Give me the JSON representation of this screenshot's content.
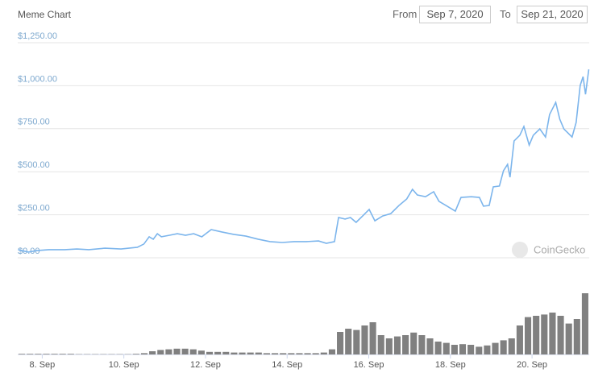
{
  "header": {
    "from_label": "From",
    "from_value": "Sep 7, 2020",
    "to_label": "To",
    "to_value": "Sep 21, 2020"
  },
  "chart_data": {
    "type": "line",
    "title": "Meme Chart",
    "watermark": "CoinGecko",
    "grid": true,
    "xlim": [
      7.4,
      21.4
    ],
    "xticks": [
      {
        "value": 8,
        "label": "8. Sep"
      },
      {
        "value": 10,
        "label": "10. Sep"
      },
      {
        "value": 12,
        "label": "12. Sep"
      },
      {
        "value": 14,
        "label": "14. Sep"
      },
      {
        "value": 16,
        "label": "16. Sep"
      },
      {
        "value": 18,
        "label": "18. Sep"
      },
      {
        "value": 20,
        "label": "20. Sep"
      }
    ],
    "ylim": [
      0,
      1250
    ],
    "yticks": [
      {
        "value": 0,
        "label": "$0.00"
      },
      {
        "value": 250,
        "label": "$250.00"
      },
      {
        "value": 500,
        "label": "$500.00"
      },
      {
        "value": 750,
        "label": "$750.00"
      },
      {
        "value": 1000,
        "label": "$1,000.00"
      },
      {
        "value": 1250,
        "label": "$1,250.00"
      }
    ],
    "y2lim": [
      0,
      100
    ],
    "series": [
      {
        "color": "#7cb5ec",
        "x": [
          7.41,
          7.66,
          7.86,
          8.16,
          8.55,
          8.85,
          9.14,
          9.54,
          9.93,
          10.33,
          10.49,
          10.62,
          10.72,
          10.82,
          10.92,
          11.12,
          11.31,
          11.51,
          11.71,
          11.91,
          12.14,
          12.4,
          12.69,
          12.99,
          13.29,
          13.58,
          13.88,
          14.17,
          14.47,
          14.77,
          14.96,
          15.16,
          15.26,
          15.42,
          15.55,
          15.69,
          15.85,
          16.01,
          16.15,
          16.34,
          16.54,
          16.74,
          16.93,
          17.07,
          17.19,
          17.39,
          17.59,
          17.72,
          17.92,
          18.12,
          18.26,
          18.51,
          18.71,
          18.81,
          18.95,
          19.05,
          19.2,
          19.3,
          19.4,
          19.46,
          19.56,
          19.7,
          19.8,
          19.93,
          20.03,
          20.19,
          20.33,
          20.43,
          20.58,
          20.68,
          20.78,
          20.98,
          21.08,
          21.18,
          21.25,
          21.31,
          21.39
        ],
        "values": [
          47,
          33,
          42,
          47,
          47,
          51,
          47,
          56,
          51,
          61,
          80,
          122,
          108,
          140,
          122,
          131,
          140,
          131,
          140,
          122,
          164,
          150,
          136,
          126,
          108,
          94,
          89,
          94,
          94,
          98,
          84,
          94,
          234,
          225,
          234,
          206,
          243,
          281,
          215,
          243,
          257,
          304,
          342,
          398,
          365,
          355,
          384,
          328,
          300,
          271,
          351,
          355,
          351,
          300,
          304,
          412,
          417,
          506,
          543,
          468,
          679,
          712,
          763,
          655,
          712,
          749,
          702,
          833,
          903,
          805,
          749,
          702,
          786,
          1002,
          1053,
          950,
          1095
        ]
      },
      {
        "color": "#808080",
        "axis": "y2",
        "x": [
          7.5,
          7.7,
          7.9,
          8.1,
          8.3,
          8.5,
          8.7,
          8.9,
          9.1,
          9.3,
          9.5,
          9.7,
          9.9,
          10.1,
          10.3,
          10.5,
          10.7,
          10.9,
          11.1,
          11.3,
          11.5,
          11.7,
          11.9,
          12.1,
          12.3,
          12.5,
          12.7,
          12.9,
          13.1,
          13.3,
          13.5,
          13.7,
          13.9,
          14.1,
          14.3,
          14.5,
          14.7,
          14.9,
          15.1,
          15.3,
          15.5,
          15.7,
          15.9,
          16.1,
          16.3,
          16.5,
          16.7,
          16.9,
          17.1,
          17.3,
          17.5,
          17.7,
          17.9,
          18.1,
          18.3,
          18.5,
          18.7,
          18.9,
          19.1,
          19.3,
          19.5,
          19.7,
          19.9,
          20.1,
          20.3,
          20.5,
          20.7,
          20.9,
          21.1,
          21.3
        ],
        "values": [
          1,
          1,
          1,
          1,
          1,
          1,
          1,
          0.5,
          0.5,
          0.5,
          0.5,
          0.5,
          0.5,
          0.5,
          1,
          2,
          5,
          7,
          8,
          9,
          9,
          8,
          6,
          4,
          4,
          4,
          3,
          3,
          3,
          3,
          2,
          2,
          2,
          2,
          2,
          2,
          2,
          3,
          8,
          35,
          40,
          38,
          45,
          50,
          30,
          25,
          28,
          30,
          34,
          30,
          25,
          20,
          18,
          15,
          16,
          15,
          12,
          14,
          18,
          22,
          25,
          45,
          58,
          60,
          62,
          65,
          60,
          48,
          55,
          95
        ]
      }
    ]
  }
}
